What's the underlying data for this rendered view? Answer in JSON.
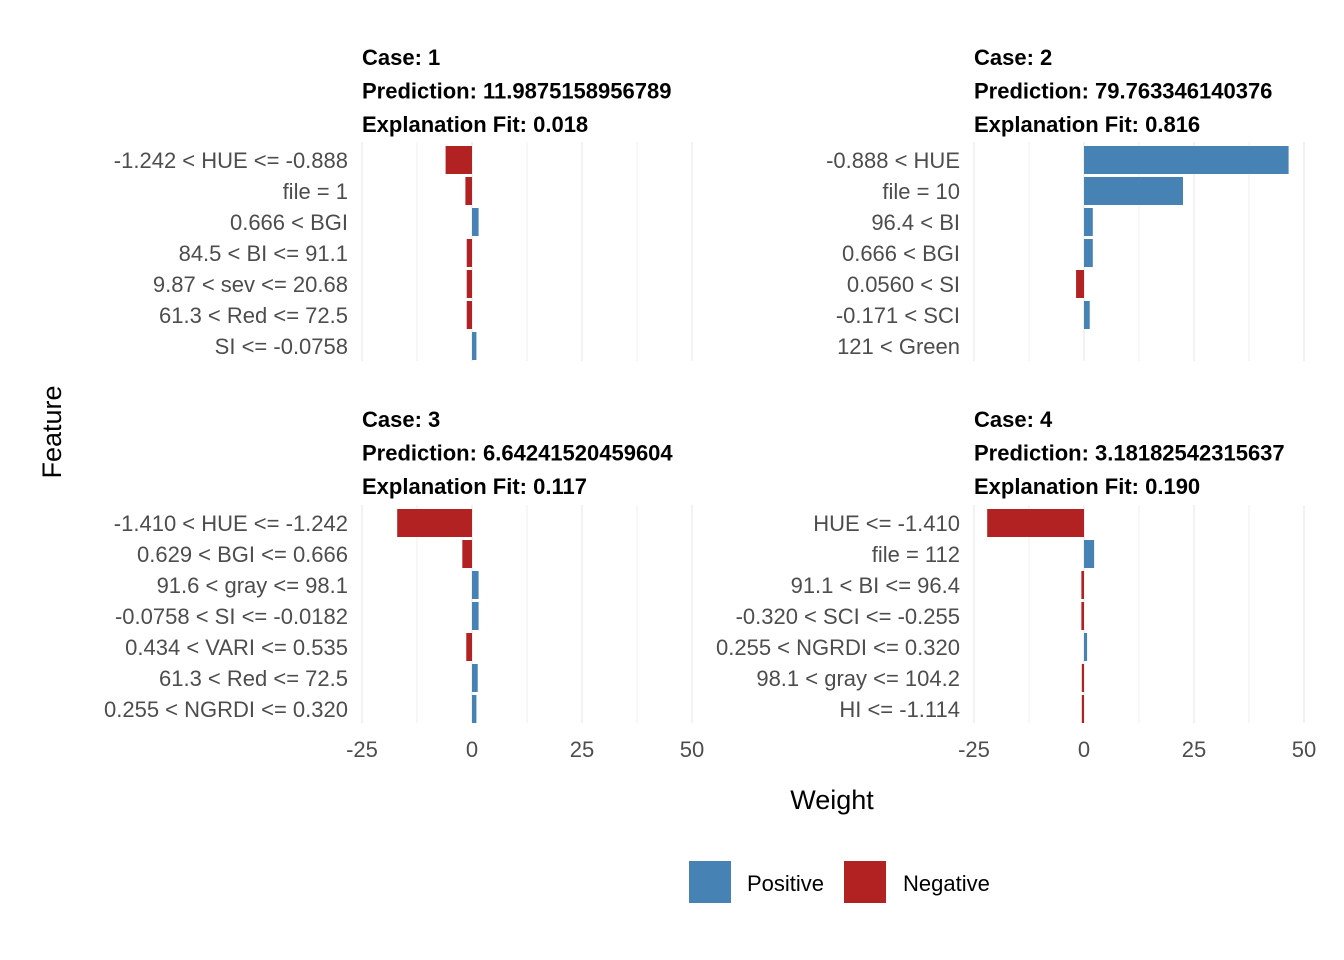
{
  "chart_data": {
    "type": "bar",
    "orientation": "horizontal",
    "xlabel": "Weight",
    "ylabel": "Feature",
    "xlim": [
      -25,
      50
    ],
    "x_ticks": [
      "-25",
      "0",
      "25",
      "50"
    ],
    "grid": true,
    "legend": {
      "position": "bottom",
      "items": [
        {
          "label": "Positive",
          "color": "#4682B4"
        },
        {
          "label": "Negative",
          "color": "#B22222"
        }
      ]
    },
    "panels": [
      {
        "case": "Case: 1",
        "prediction": "Prediction: 11.9875158956789",
        "fit": "Explanation Fit: 0.018",
        "bars": [
          {
            "feature": "-1.242 < HUE <= -0.888",
            "weight": -6.0
          },
          {
            "feature": "file = 1",
            "weight": -1.5
          },
          {
            "feature": "0.666 < BGI",
            "weight": 1.5
          },
          {
            "feature": "84.5 < BI <= 91.1",
            "weight": -1.2
          },
          {
            "feature": "9.87 < sev <= 20.68",
            "weight": -1.2
          },
          {
            "feature": "61.3 < Red <= 72.5",
            "weight": -1.2
          },
          {
            "feature": "SI <= -0.0758",
            "weight": 1.0
          }
        ]
      },
      {
        "case": "Case: 2",
        "prediction": "Prediction: 79.763346140376",
        "fit": "Explanation Fit: 0.816",
        "bars": [
          {
            "feature": "-0.888 < HUE",
            "weight": 46.5
          },
          {
            "feature": "file = 10",
            "weight": 22.5
          },
          {
            "feature": "96.4 < BI",
            "weight": 2.0
          },
          {
            "feature": "0.666 < BGI",
            "weight": 2.0
          },
          {
            "feature": "0.0560 < SI",
            "weight": -1.8
          },
          {
            "feature": "-0.171 < SCI",
            "weight": 1.3
          },
          {
            "feature": "121 < Green",
            "weight": 0.0
          }
        ]
      },
      {
        "case": "Case: 3",
        "prediction": "Prediction: 6.64241520459604",
        "fit": "Explanation Fit: 0.117",
        "bars": [
          {
            "feature": "-1.410 < HUE <= -1.242",
            "weight": -17.0
          },
          {
            "feature": "0.629 < BGI <= 0.666",
            "weight": -2.2
          },
          {
            "feature": "91.6 < gray <= 98.1",
            "weight": 1.5
          },
          {
            "feature": "-0.0758 < SI <= -0.0182",
            "weight": 1.5
          },
          {
            "feature": "0.434 < VARI <= 0.535",
            "weight": -1.3
          },
          {
            "feature": "61.3 < Red <= 72.5",
            "weight": 1.3
          },
          {
            "feature": "0.255 < NGRDI <= 0.320",
            "weight": 1.0
          }
        ]
      },
      {
        "case": "Case: 4",
        "prediction": "Prediction: 3.18182542315637",
        "fit": "Explanation Fit: 0.190",
        "bars": [
          {
            "feature": "HUE <= -1.410",
            "weight": -22.0
          },
          {
            "feature": "file = 112",
            "weight": 2.3
          },
          {
            "feature": "91.1 < BI <= 96.4",
            "weight": -0.6
          },
          {
            "feature": "-0.320 < SCI <= -0.255",
            "weight": -0.6
          },
          {
            "feature": "0.255 < NGRDI <= 0.320",
            "weight": 0.7
          },
          {
            "feature": "98.1 < gray <= 104.2",
            "weight": -0.5
          },
          {
            "feature": "HI <= -1.114",
            "weight": -0.5
          }
        ]
      }
    ]
  }
}
